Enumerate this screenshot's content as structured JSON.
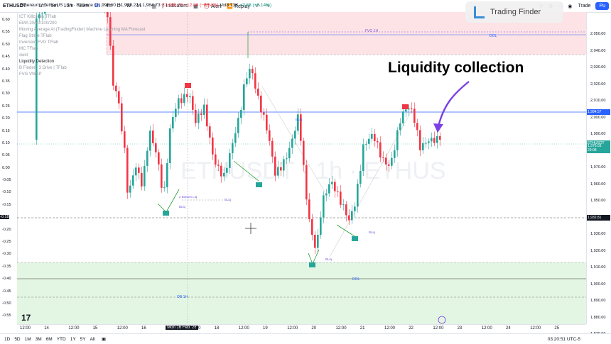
{
  "toolbar": {
    "symbol": "ETHUSDT",
    "timeframes": [
      "1m",
      "5m",
      "15m",
      "30m",
      "1h",
      "4h",
      "D",
      "W",
      "M"
    ],
    "indicators_label": "Indicators",
    "alert_label": "Alert",
    "replay_label": "Replay",
    "trade_label": "Trade",
    "publish_label": "Pu"
  },
  "ohlc": {
    "title": "Ethereum / TetherUS · 1h · Binance",
    "o": "O1,998.60",
    "h": "H1,999.22",
    "l": "L1,984.73",
    "c": "C1,985.70",
    "change": "−12.89 (−0.64%)",
    "vol": "Vol8.73K",
    "vol_change": "+2.68 (+0.14%)"
  },
  "legend": [
    "ICT Killzones TFlab",
    "EMA 20/50/100/200",
    "Moving Average AI (TradingFinder) Machine Learning MA Forecast",
    "Flag Strike TFlab",
    "Inversion FVG TFlab",
    "MC TFlab",
    "swol",
    "Liquidity Detection",
    "B Finder | 3 Drive | TFlab",
    "FVG VWAP"
  ],
  "annotation": "Liquidity collection",
  "logo_text": "Trading Finder",
  "left_axis": [
    "0.60",
    "0.55",
    "0.50",
    "0.45",
    "0.40",
    "0.35",
    "0.30",
    "0.25",
    "0.20",
    "0.15",
    "0.10",
    "0.05",
    "0.00",
    "-0.05",
    "-0.10",
    "-0.15",
    "-0.18",
    "-0.20",
    "-0.25",
    "-0.30",
    "-0.35",
    "-0.40",
    "-0.45",
    "-0.50",
    "-0.55"
  ],
  "right_axis": [
    "2,050.00",
    "2,040.00",
    "2,030.00",
    "2,020.00",
    "2,010.00",
    "2,000.00",
    "1,990.00",
    "1,980.00",
    "1,970.00",
    "1,960.00",
    "1,950.00",
    "1,940.00",
    "1,930.00",
    "1,920.00",
    "1,910.00",
    "1,900.00",
    "1,890.00",
    "1,880.00",
    "1,870.00"
  ],
  "right_labels": {
    "upper": "1,994.57",
    "ethusdt_tag": "ETHUSDT",
    "price": "1,976.03",
    "countdown": "29:08",
    "lower": "1,932.81"
  },
  "time_axis": [
    "12:00",
    "14",
    "12:00",
    "15",
    "12:00",
    "16",
    "Mon 16 Feb '26",
    "22:00",
    "18",
    "12:00",
    "19",
    "12:00",
    "20",
    "12:00",
    "21",
    "12:00",
    "22",
    "12:00",
    "23",
    "12:00",
    "24",
    "12:00",
    "25"
  ],
  "zone_labels": {
    "fvg": "FVG 1H",
    "dol_top": "DOL",
    "dol_bottom": "DOL",
    "ob": "OB 1H",
    "bull1": "BLiq",
    "bull2": "BLiq",
    "bull3": "BLiq",
    "bull4": "BLiq",
    "bear1": "BLiq",
    "double_bottom": "2 Bottom Liq"
  },
  "footer": {
    "ranges": [
      "1D",
      "5D",
      "1M",
      "3M",
      "6M",
      "YTD",
      "1Y",
      "5Y",
      "All"
    ],
    "time": "03:20:51 UTC-5"
  },
  "colors": {
    "up": "#26a69a",
    "down": "#f23645",
    "supply_zone": "#fde2e6",
    "demand_zone": "#e3f6e3",
    "blue_line": "#2962ff",
    "green_swing": "#1f9d2f",
    "annotation_arrow": "#7b3fe4"
  }
}
